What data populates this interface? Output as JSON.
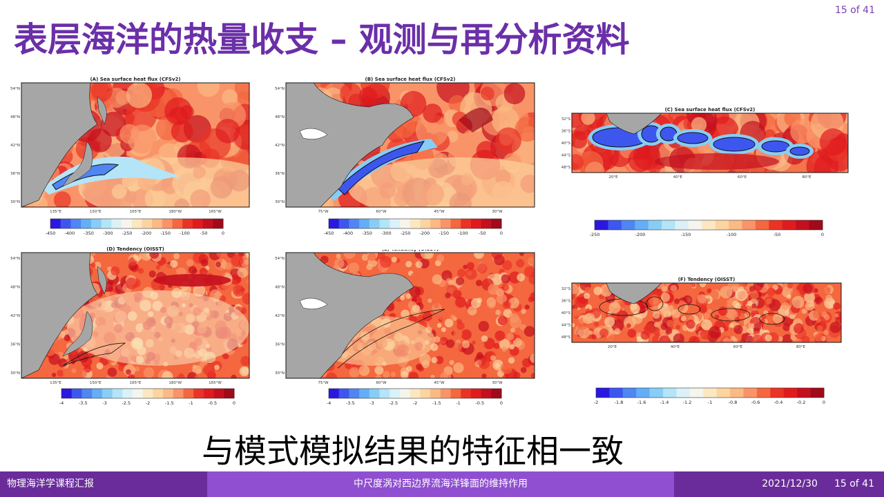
{
  "slide": {
    "page_indicator": "15 of 41",
    "title": "表层海洋的热量收支 – 观测与再分析资料",
    "conclusion": "与模式模拟结果的特征相一致"
  },
  "footer": {
    "course": "物理海洋学课程汇报",
    "topic": "中尺度涡对西边界流海洋锋面的维持作用",
    "date": "2021/12/30",
    "page": "15 of 41"
  },
  "colors": {
    "accent_purple": "#6b2fa8",
    "footer_dark": "#6a2c9a",
    "footer_light": "#8f4fd0",
    "land_gray": "#a6a6a6",
    "colormap": [
      "#2a18e0",
      "#3d57ee",
      "#4f86f2",
      "#63aef6",
      "#88cdf5",
      "#b3e4f7",
      "#dbf1f7",
      "#f5f5ee",
      "#fbe8c2",
      "#fcd4a0",
      "#fbb985",
      "#f99468",
      "#f4673f",
      "#ea3326",
      "#e01b1e",
      "#c4101e",
      "#a00a1a"
    ]
  },
  "panels": [
    {
      "id": "A",
      "title": "(A) Sea surface heat flux (CFSv2)",
      "lat_labels": [
        "54°N",
        "48°N",
        "42°N",
        "36°N",
        "30°N"
      ],
      "lon_labels": [
        "135°E",
        "150°E",
        "165°E",
        "180°W",
        "165°W"
      ],
      "colorbar": [
        "-450",
        "-400",
        "-350",
        "-300",
        "-250",
        "-200",
        "-150",
        "-100",
        "-50",
        "0"
      ]
    },
    {
      "id": "B",
      "title": "(B) Sea surface heat flux (CFSv2)",
      "lat_labels": [
        "54°N",
        "48°N",
        "42°N",
        "36°N",
        "30°N"
      ],
      "lon_labels": [
        "75°W",
        "60°W",
        "45°W",
        "30°W"
      ],
      "colorbar": [
        "-450",
        "-400",
        "-350",
        "-300",
        "-250",
        "-200",
        "-150",
        "-100",
        "-50",
        "0"
      ]
    },
    {
      "id": "C",
      "title": "(C) Sea surface heat flux (CFSv2)",
      "lat_labels": [
        "32°S",
        "36°S",
        "40°S",
        "44°S",
        "48°S"
      ],
      "lon_labels": [
        "20°E",
        "40°E",
        "60°E",
        "80°E"
      ],
      "colorbar": [
        "-250",
        "-200",
        "-150",
        "-100",
        "-50",
        "0"
      ]
    },
    {
      "id": "D",
      "title": "(D) Tendency (OISST)",
      "lat_labels": [
        "54°N",
        "48°N",
        "42°N",
        "36°N",
        "30°N"
      ],
      "lon_labels": [
        "135°E",
        "150°E",
        "165°E",
        "180°W",
        "165°W"
      ],
      "colorbar": [
        "-4",
        "-3.5",
        "-3",
        "-2.5",
        "-2",
        "-1.5",
        "-1",
        "-0.5",
        "0"
      ]
    },
    {
      "id": "E",
      "title": "(E) Tendency (OISST)",
      "lat_labels": [
        "54°N",
        "48°N",
        "42°N",
        "36°N",
        "30°N"
      ],
      "lon_labels": [
        "75°W",
        "60°W",
        "45°W",
        "30°W"
      ],
      "colorbar": [
        "-4",
        "-3.5",
        "-3",
        "-2.5",
        "-2",
        "-1.5",
        "-1",
        "-0.5",
        "0"
      ]
    },
    {
      "id": "F",
      "title": "(F) Tendency (OISST)",
      "lat_labels": [
        "32°S",
        "36°S",
        "40°S",
        "44°S",
        "48°S"
      ],
      "lon_labels": [
        "20°E",
        "40°E",
        "60°E",
        "80°E"
      ],
      "colorbar": [
        "-2",
        "-1.8",
        "-1.6",
        "-1.4",
        "-1.2",
        "-1",
        "-0.8",
        "-0.6",
        "-0.4",
        "-0.2",
        "0"
      ]
    }
  ]
}
